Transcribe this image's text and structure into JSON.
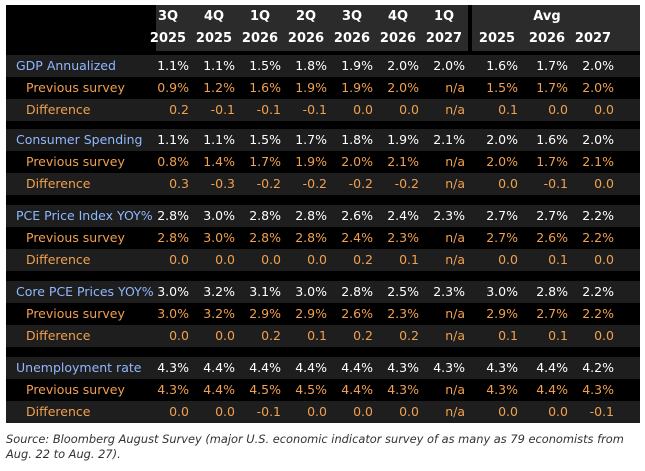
{
  "chart_data": {
    "type": "table",
    "header": {
      "quarters": [
        "3Q",
        "4Q",
        "1Q",
        "2Q",
        "3Q",
        "4Q",
        "1Q"
      ],
      "avg_label": "Avg",
      "years": [
        "2025",
        "2025",
        "2026",
        "2026",
        "2026",
        "2026",
        "2027",
        "2025",
        "2026",
        "2027"
      ]
    },
    "groups": [
      {
        "name": "GDP Annualized",
        "rows": [
          {
            "label": "GDP Annualized",
            "values": [
              "1.1%",
              "1.1%",
              "1.5%",
              "1.8%",
              "1.9%",
              "2.0%",
              "2.0%",
              "1.6%",
              "1.7%",
              "2.0%"
            ]
          },
          {
            "label": "Previous survey",
            "values": [
              "0.9%",
              "1.2%",
              "1.6%",
              "1.9%",
              "1.9%",
              "2.0%",
              "n/a",
              "1.5%",
              "1.7%",
              "2.0%"
            ]
          },
          {
            "label": "Difference",
            "values": [
              "0.2",
              "-0.1",
              "-0.1",
              "-0.1",
              "0.0",
              "0.0",
              "n/a",
              "0.1",
              "0.0",
              "0.0"
            ]
          }
        ]
      },
      {
        "name": "Consumer Spending",
        "rows": [
          {
            "label": "Consumer Spending",
            "values": [
              "1.1%",
              "1.1%",
              "1.5%",
              "1.7%",
              "1.8%",
              "1.9%",
              "2.1%",
              "2.0%",
              "1.6%",
              "2.0%"
            ]
          },
          {
            "label": "Previous survey",
            "values": [
              "0.8%",
              "1.4%",
              "1.7%",
              "1.9%",
              "2.0%",
              "2.1%",
              "n/a",
              "2.0%",
              "1.7%",
              "2.1%"
            ]
          },
          {
            "label": "Difference",
            "values": [
              "0.3",
              "-0.3",
              "-0.2",
              "-0.2",
              "-0.2",
              "-0.2",
              "n/a",
              "0.0",
              "-0.1",
              "0.0"
            ]
          }
        ]
      },
      {
        "name": "PCE Price Index YOY%",
        "rows": [
          {
            "label": "PCE Price Index YOY%",
            "values": [
              "2.8%",
              "3.0%",
              "2.8%",
              "2.8%",
              "2.6%",
              "2.4%",
              "2.3%",
              "2.7%",
              "2.7%",
              "2.2%"
            ]
          },
          {
            "label": "Previous survey",
            "values": [
              "2.8%",
              "3.0%",
              "2.8%",
              "2.8%",
              "2.4%",
              "2.3%",
              "n/a",
              "2.7%",
              "2.6%",
              "2.2%"
            ]
          },
          {
            "label": "Difference",
            "values": [
              "0.0",
              "0.0",
              "0.0",
              "0.0",
              "0.2",
              "0.1",
              "n/a",
              "0.0",
              "0.1",
              "0.0"
            ]
          }
        ]
      },
      {
        "name": "Core PCE Prices YOY%",
        "rows": [
          {
            "label": "Core PCE Prices YOY%",
            "values": [
              "3.0%",
              "3.2%",
              "3.1%",
              "3.0%",
              "2.8%",
              "2.5%",
              "2.3%",
              "3.0%",
              "2.8%",
              "2.2%"
            ]
          },
          {
            "label": "Previous survey",
            "values": [
              "3.0%",
              "3.2%",
              "2.9%",
              "2.9%",
              "2.6%",
              "2.3%",
              "n/a",
              "2.9%",
              "2.7%",
              "2.2%"
            ]
          },
          {
            "label": "Difference",
            "values": [
              "0.0",
              "0.0",
              "0.2",
              "0.1",
              "0.2",
              "0.2",
              "n/a",
              "0.1",
              "0.1",
              "0.0"
            ]
          }
        ]
      },
      {
        "name": "Unemployment rate",
        "rows": [
          {
            "label": "Unemployment rate",
            "values": [
              "4.3%",
              "4.4%",
              "4.4%",
              "4.4%",
              "4.4%",
              "4.3%",
              "4.3%",
              "4.3%",
              "4.4%",
              "4.2%"
            ]
          },
          {
            "label": "Previous survey",
            "values": [
              "4.3%",
              "4.4%",
              "4.5%",
              "4.5%",
              "4.4%",
              "4.3%",
              "n/a",
              "4.3%",
              "4.4%",
              "4.3%"
            ]
          },
          {
            "label": "Difference",
            "values": [
              "0.0",
              "0.0",
              "-0.1",
              "0.0",
              "0.0",
              "0.0",
              "n/a",
              "0.0",
              "0.0",
              "-0.1"
            ]
          }
        ]
      }
    ],
    "colors": {
      "panel": "#000000",
      "header_bg": "#2b2b2b",
      "row_bg_odd": "#1e1e1e",
      "row_bg_even": "#000000",
      "indicator_label": "#8fb8ff",
      "indicator_value": "#ffffff",
      "sub_row": "#f0a050"
    }
  },
  "source": "Source: Bloomberg August Survey (major U.S. economic indicator survey of as many as 79 economists from Aug. 22 to Aug. 27)."
}
